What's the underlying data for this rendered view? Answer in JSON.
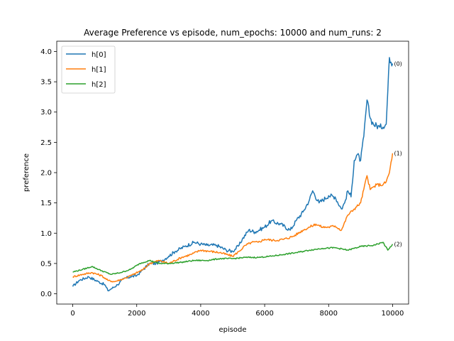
{
  "chart_data": {
    "type": "line",
    "title": "Average Preference vs episode, num_epochs: 10000 and num_runs: 2",
    "xlabel": "episode",
    "ylabel": "preference",
    "xlim": [
      -500,
      10500
    ],
    "ylim": [
      -0.17,
      4.17
    ],
    "xticks": [
      0,
      2000,
      4000,
      6000,
      8000,
      10000
    ],
    "xtick_labels": [
      "0",
      "2000",
      "4000",
      "6000",
      "8000",
      "10000"
    ],
    "yticks": [
      0.0,
      0.5,
      1.0,
      1.5,
      2.0,
      2.5,
      3.0,
      3.5,
      4.0
    ],
    "ytick_labels": [
      "0.0",
      "0.5",
      "1.0",
      "1.5",
      "2.0",
      "2.5",
      "3.0",
      "3.5",
      "4.0"
    ],
    "grid": false,
    "legend_position": "top-left",
    "series": [
      {
        "name": "h[0]",
        "color": "#1f77b4",
        "end_label": "(0)",
        "x": [
          0,
          200,
          500,
          800,
          1000,
          1100,
          1200,
          1400,
          1600,
          1800,
          2000,
          2200,
          2400,
          2600,
          2800,
          3000,
          3200,
          3500,
          3800,
          4000,
          4200,
          4500,
          4800,
          5000,
          5200,
          5300,
          5500,
          5700,
          6000,
          6200,
          6500,
          6800,
          7000,
          7200,
          7400,
          7500,
          7700,
          8000,
          8200,
          8400,
          8500,
          8600,
          8700,
          8800,
          8900,
          9000,
          9100,
          9200,
          9300,
          9400,
          9600,
          9800,
          9900,
          10000
        ],
        "values": [
          0.12,
          0.22,
          0.28,
          0.2,
          0.15,
          0.05,
          0.08,
          0.15,
          0.25,
          0.28,
          0.3,
          0.4,
          0.5,
          0.5,
          0.55,
          0.62,
          0.7,
          0.78,
          0.85,
          0.82,
          0.8,
          0.8,
          0.72,
          0.7,
          0.8,
          0.9,
          1.05,
          1.02,
          1.1,
          1.2,
          1.15,
          1.05,
          1.22,
          1.35,
          1.55,
          1.7,
          1.5,
          1.62,
          1.6,
          1.4,
          1.5,
          1.7,
          1.6,
          2.2,
          2.3,
          2.2,
          2.6,
          3.2,
          2.9,
          2.8,
          2.75,
          2.8,
          3.9,
          3.8
        ]
      },
      {
        "name": "h[1]",
        "color": "#ff7f0e",
        "end_label": "(1)",
        "x": [
          0,
          300,
          600,
          900,
          1100,
          1300,
          1600,
          1900,
          2200,
          2400,
          2700,
          3000,
          3400,
          3700,
          4000,
          4300,
          4600,
          5000,
          5200,
          5400,
          5600,
          5800,
          6000,
          6300,
          6600,
          6900,
          7200,
          7400,
          7600,
          7800,
          8000,
          8200,
          8400,
          8600,
          8800,
          9000,
          9200,
          9300,
          9500,
          9700,
          9800,
          9900,
          10000
        ],
        "values": [
          0.28,
          0.32,
          0.35,
          0.3,
          0.22,
          0.2,
          0.25,
          0.32,
          0.4,
          0.5,
          0.55,
          0.5,
          0.6,
          0.65,
          0.72,
          0.7,
          0.68,
          0.62,
          0.7,
          0.8,
          0.85,
          0.85,
          0.9,
          0.88,
          0.9,
          0.95,
          1.05,
          1.1,
          1.15,
          1.1,
          1.1,
          1.12,
          1.05,
          1.3,
          1.4,
          1.5,
          1.95,
          1.72,
          1.8,
          1.8,
          1.85,
          2.0,
          2.32
        ]
      },
      {
        "name": "h[2]",
        "color": "#2ca02c",
        "end_label": "(2)",
        "x": [
          0,
          300,
          600,
          900,
          1200,
          1500,
          1800,
          2100,
          2400,
          2700,
          3000,
          3400,
          3800,
          4200,
          4600,
          5000,
          5400,
          5800,
          6200,
          6600,
          7000,
          7400,
          7800,
          8200,
          8600,
          9000,
          9400,
          9700,
          9850,
          9900,
          10000
        ],
        "values": [
          0.36,
          0.4,
          0.45,
          0.38,
          0.32,
          0.35,
          0.4,
          0.5,
          0.55,
          0.5,
          0.5,
          0.52,
          0.55,
          0.55,
          0.58,
          0.58,
          0.6,
          0.6,
          0.62,
          0.65,
          0.68,
          0.72,
          0.75,
          0.76,
          0.72,
          0.78,
          0.8,
          0.85,
          0.72,
          0.75,
          0.82
        ]
      }
    ]
  }
}
